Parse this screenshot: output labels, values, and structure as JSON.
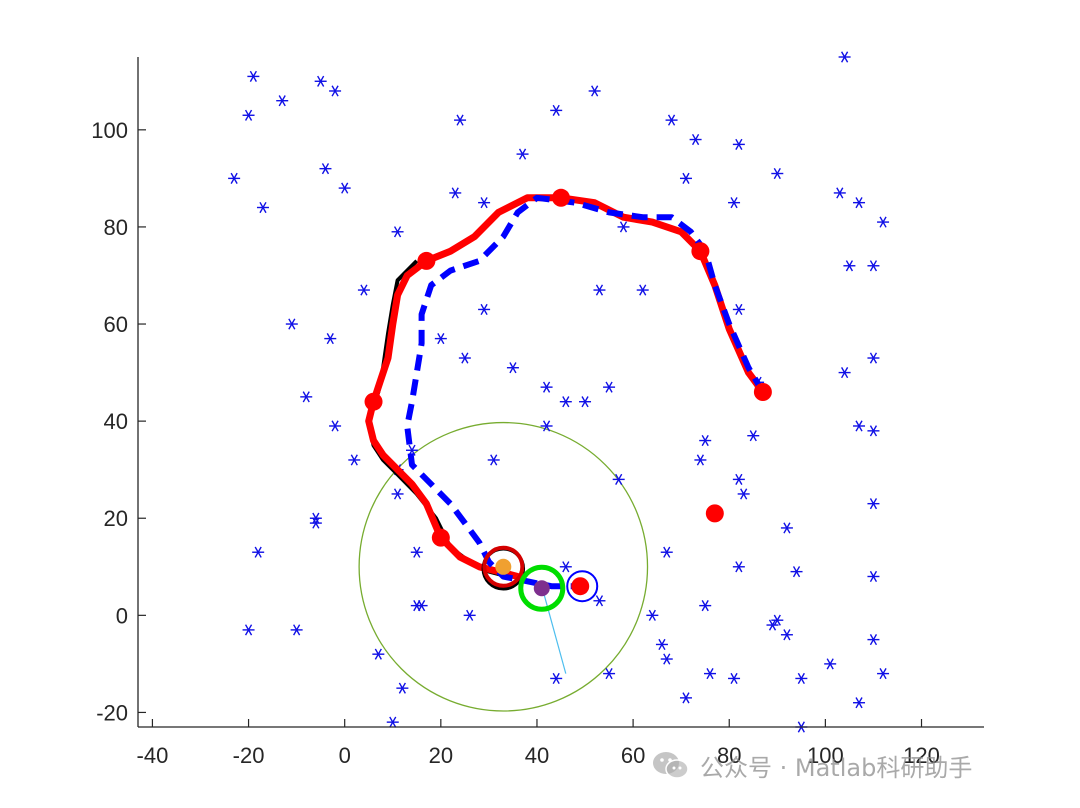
{
  "watermark": {
    "text": "公众号 · Matlab科研助手",
    "icon": "wechat-icon"
  },
  "chart_data": {
    "type": "scatter",
    "title": "",
    "xlabel": "",
    "ylabel": "",
    "xlim": [
      -43,
      133
    ],
    "ylim": [
      -23,
      115
    ],
    "xticks": [
      -40,
      -20,
      0,
      20,
      40,
      60,
      80,
      100,
      120
    ],
    "yticks": [
      -20,
      0,
      20,
      40,
      60,
      80,
      100
    ],
    "grid": false,
    "axes_box": "left-bottom",
    "colors": {
      "obstacles": "#1010e6",
      "planned": "#0000ff",
      "actual": "#ff0000",
      "reference": "#000000",
      "sensor_circle": "#77ac30",
      "ray": "#4dbeee",
      "current_ring": "#00dd00",
      "lookahead_ring": "#d40000",
      "goal_ring": "#0000ff",
      "orange": "#f0a030",
      "purple": "#7e2f8e"
    },
    "obstacles": [
      [
        -19,
        111
      ],
      [
        -20,
        103
      ],
      [
        -13,
        106
      ],
      [
        -5,
        110
      ],
      [
        -2,
        108
      ],
      [
        -23,
        90
      ],
      [
        -17,
        84
      ],
      [
        -4,
        92
      ],
      [
        0,
        88
      ],
      [
        24,
        102
      ],
      [
        44,
        104
      ],
      [
        52,
        108
      ],
      [
        68,
        102
      ],
      [
        73,
        98
      ],
      [
        82,
        97
      ],
      [
        37,
        95
      ],
      [
        23,
        87
      ],
      [
        29,
        85
      ],
      [
        71,
        90
      ],
      [
        81,
        85
      ],
      [
        90,
        91
      ],
      [
        103,
        87
      ],
      [
        107,
        85
      ],
      [
        112,
        81
      ],
      [
        105,
        72
      ],
      [
        110,
        72
      ],
      [
        11,
        79
      ],
      [
        4,
        67
      ],
      [
        -11,
        60
      ],
      [
        -3,
        57
      ],
      [
        58,
        80
      ],
      [
        53,
        67
      ],
      [
        62,
        67
      ],
      [
        29,
        63
      ],
      [
        20,
        57
      ],
      [
        25,
        53
      ],
      [
        35,
        51
      ],
      [
        42,
        47
      ],
      [
        46,
        44
      ],
      [
        50,
        44
      ],
      [
        55,
        47
      ],
      [
        82,
        63
      ],
      [
        86,
        48
      ],
      [
        104,
        50
      ],
      [
        110,
        53
      ],
      [
        -8,
        45
      ],
      [
        -2,
        39
      ],
      [
        2,
        32
      ],
      [
        11,
        30
      ],
      [
        14,
        34
      ],
      [
        31,
        32
      ],
      [
        42,
        39
      ],
      [
        75,
        36
      ],
      [
        74,
        32
      ],
      [
        85,
        37
      ],
      [
        107,
        39
      ],
      [
        110,
        38
      ],
      [
        57,
        28
      ],
      [
        82,
        28
      ],
      [
        83,
        25
      ],
      [
        11,
        25
      ],
      [
        -6,
        20
      ],
      [
        -6,
        19
      ],
      [
        -18,
        13
      ],
      [
        15,
        13
      ],
      [
        67,
        13
      ],
      [
        92,
        18
      ],
      [
        110,
        23
      ],
      [
        46,
        10
      ],
      [
        82,
        10
      ],
      [
        94,
        9
      ],
      [
        110,
        8
      ],
      [
        15,
        2
      ],
      [
        16,
        2
      ],
      [
        26,
        0
      ],
      [
        53,
        3
      ],
      [
        64,
        0
      ],
      [
        75,
        2
      ],
      [
        89,
        -2
      ],
      [
        90,
        -1
      ],
      [
        92,
        -4
      ],
      [
        110,
        -5
      ],
      [
        -20,
        -3
      ],
      [
        -10,
        -3
      ],
      [
        7,
        -8
      ],
      [
        66,
        -6
      ],
      [
        67,
        -9
      ],
      [
        101,
        -10
      ],
      [
        76,
        -12
      ],
      [
        81,
        -13
      ],
      [
        95,
        -13
      ],
      [
        107,
        -18
      ],
      [
        112,
        -12
      ],
      [
        12,
        -15
      ],
      [
        44,
        -13
      ],
      [
        55,
        -12
      ],
      [
        71,
        -17
      ],
      [
        10,
        -22
      ],
      [
        95,
        -23
      ],
      [
        104,
        115
      ]
    ],
    "planned_path": [
      [
        87,
        46
      ],
      [
        84,
        51
      ],
      [
        80,
        60
      ],
      [
        77,
        68
      ],
      [
        75,
        75
      ],
      [
        72,
        79
      ],
      [
        68,
        82
      ],
      [
        62,
        82
      ],
      [
        55,
        83
      ],
      [
        48,
        85
      ],
      [
        40,
        86
      ],
      [
        36,
        83
      ],
      [
        33,
        78
      ],
      [
        28,
        73
      ],
      [
        22,
        71
      ],
      [
        18,
        68
      ],
      [
        16,
        62
      ],
      [
        16,
        56
      ],
      [
        15,
        50
      ],
      [
        14,
        44
      ],
      [
        13,
        39
      ],
      [
        14,
        31
      ],
      [
        18,
        27
      ],
      [
        22,
        23
      ],
      [
        25,
        19
      ],
      [
        28,
        15
      ],
      [
        30,
        11
      ],
      [
        33,
        8
      ],
      [
        38,
        7
      ],
      [
        43,
        6
      ],
      [
        48,
        6
      ],
      [
        52,
        5
      ]
    ],
    "actual_path": [
      [
        87,
        46
      ],
      [
        84,
        50
      ],
      [
        80,
        59
      ],
      [
        77,
        68
      ],
      [
        74,
        75
      ],
      [
        70,
        79
      ],
      [
        64,
        81
      ],
      [
        58,
        82
      ],
      [
        52,
        85
      ],
      [
        45,
        86
      ],
      [
        38,
        86
      ],
      [
        32,
        83
      ],
      [
        27,
        78
      ],
      [
        22,
        75
      ],
      [
        17,
        73
      ],
      [
        13,
        70
      ],
      [
        11,
        66
      ],
      [
        10,
        60
      ],
      [
        9,
        53
      ],
      [
        7,
        47
      ],
      [
        6,
        44
      ],
      [
        5,
        40
      ],
      [
        6,
        36
      ],
      [
        8,
        33
      ],
      [
        11,
        30
      ],
      [
        14,
        27
      ],
      [
        17,
        23
      ],
      [
        20,
        16
      ],
      [
        24,
        12
      ],
      [
        28,
        10
      ],
      [
        32,
        9
      ],
      [
        36,
        8
      ]
    ],
    "reference_path": [
      [
        15,
        73
      ],
      [
        11,
        69
      ],
      [
        10,
        64
      ],
      [
        9,
        58
      ],
      [
        8,
        51
      ],
      [
        7,
        46
      ],
      [
        6,
        43
      ],
      [
        5,
        40
      ],
      [
        6,
        35
      ],
      [
        8,
        32
      ],
      [
        11,
        29
      ],
      [
        15,
        25
      ],
      [
        19,
        20
      ],
      [
        22,
        14
      ],
      [
        26,
        11
      ],
      [
        30,
        9
      ],
      [
        34,
        8
      ]
    ],
    "waypoints": [
      [
        87,
        46
      ],
      [
        74,
        75
      ],
      [
        45,
        86
      ],
      [
        17,
        73
      ],
      [
        6,
        44
      ],
      [
        20,
        16
      ],
      [
        77,
        21
      ],
      [
        49,
        6
      ]
    ],
    "sensor_circle": {
      "center": [
        33,
        10
      ],
      "radius": 30
    },
    "ray": [
      [
        41,
        6
      ],
      [
        46,
        -12
      ]
    ],
    "current_position": [
      33,
      10
    ],
    "lookahead_point": [
      41,
      6
    ],
    "goal_point": [
      49,
      6
    ]
  }
}
